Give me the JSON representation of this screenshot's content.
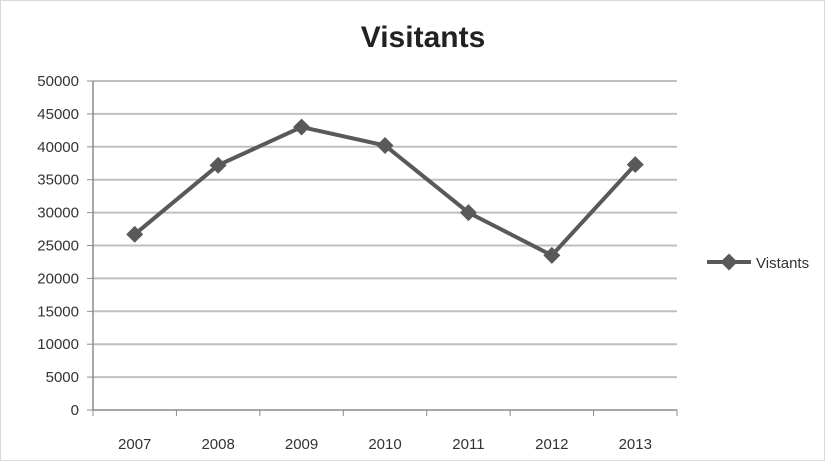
{
  "chart_data": {
    "type": "line",
    "title": "Visitants",
    "xlabel": "",
    "ylabel": "",
    "categories": [
      "2007",
      "2008",
      "2009",
      "2010",
      "2011",
      "2012",
      "2013"
    ],
    "series": [
      {
        "name": "Vistants",
        "values": [
          26700,
          37200,
          43000,
          40200,
          30000,
          23500,
          37300
        ]
      }
    ],
    "ylim": [
      0,
      50000
    ],
    "yticks": [
      0,
      5000,
      10000,
      15000,
      20000,
      25000,
      30000,
      35000,
      40000,
      45000,
      50000
    ],
    "grid": true,
    "legend": "right",
    "colors": {
      "line": "#595959",
      "grid": "#bfbfbf",
      "axis": "#8c8c8c"
    }
  }
}
